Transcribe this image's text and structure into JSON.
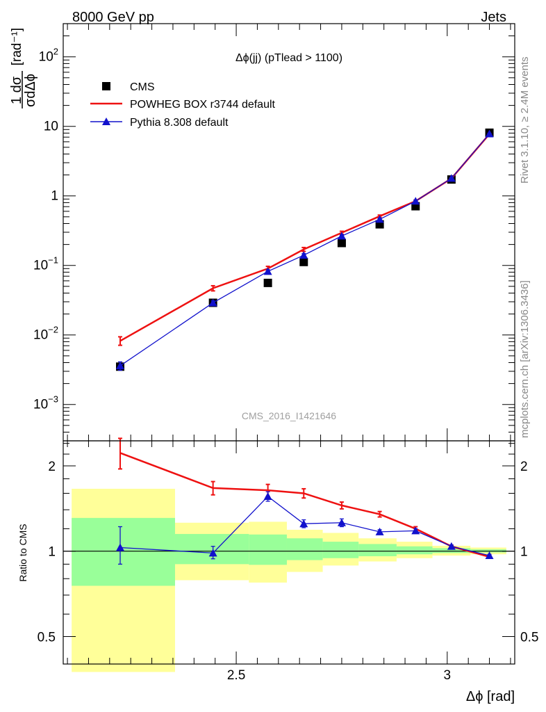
{
  "header": {
    "left": "8000 GeV pp",
    "right": "Jets"
  },
  "side_labels": {
    "top": "Rivet 3.1.10, ≥ 2.4M events",
    "bottom": "mcplots.cern.ch [arXiv:1306.3436]"
  },
  "analysis_tag": "CMS_2016_I1421646",
  "chart_data": [
    {
      "panel": "main",
      "type": "scatter",
      "title": "Δϕ(jj) (pTlead >  1100)",
      "ylabel_num": "1 dσ",
      "ylabel_den": "σdΔϕ",
      "ylabel_unit": "[rad⁻¹]",
      "xlim": [
        2.09,
        3.16
      ],
      "ylim": [
        0.0003,
        300
      ],
      "yscale": "log",
      "yticks": [
        {
          "value": 0.001,
          "base": "10",
          "exp": "−3"
        },
        {
          "value": 0.01,
          "base": "10",
          "exp": "−2"
        },
        {
          "value": 0.1,
          "base": "10",
          "exp": "−1"
        },
        {
          "value": 1,
          "base": "1",
          "exp": ""
        },
        {
          "value": 10,
          "base": "10",
          "exp": ""
        },
        {
          "value": 100,
          "base": "10",
          "exp": "2"
        }
      ],
      "legend": {
        "placement": "top-left"
      },
      "x": [
        2.225,
        2.445,
        2.575,
        2.66,
        2.75,
        2.84,
        2.925,
        3.01,
        3.1
      ],
      "series": [
        {
          "name": "CMS",
          "color": "#000000",
          "marker": "square",
          "values": [
            0.0035,
            0.029,
            0.056,
            0.112,
            0.21,
            0.39,
            0.71,
            1.72,
            8.1
          ],
          "err_lo": [
            0.0032,
            0.027,
            0.053,
            0.106,
            0.2,
            0.375,
            0.685,
            1.67,
            7.9
          ],
          "err_hi": [
            0.0038,
            0.031,
            0.059,
            0.118,
            0.22,
            0.405,
            0.735,
            1.77,
            8.3
          ]
        },
        {
          "name": "POWHEG BOX r3744 default",
          "color": "#ee1111",
          "marker": "none",
          "values": [
            0.0082,
            0.047,
            0.09,
            0.17,
            0.295,
            0.51,
            0.84,
            1.78,
            7.75
          ],
          "err_lo": [
            0.0071,
            0.043,
            0.083,
            0.159,
            0.28,
            0.49,
            0.81,
            1.74,
            7.6
          ],
          "err_hi": [
            0.0094,
            0.051,
            0.097,
            0.181,
            0.31,
            0.53,
            0.87,
            1.82,
            7.9
          ]
        },
        {
          "name": "Pythia 8.308 default",
          "color": "#1111cc",
          "marker": "triangle",
          "values": [
            0.0036,
            0.029,
            0.082,
            0.14,
            0.265,
            0.46,
            0.84,
            1.79,
            7.8
          ],
          "err_lo": [
            0.0031,
            0.027,
            0.077,
            0.132,
            0.255,
            0.445,
            0.815,
            1.75,
            7.65
          ],
          "err_hi": [
            0.0041,
            0.031,
            0.087,
            0.148,
            0.275,
            0.475,
            0.865,
            1.83,
            7.95
          ]
        }
      ]
    },
    {
      "panel": "ratio",
      "type": "line",
      "ylabel": "Ratio to CMS",
      "xlabel": "Δϕ [rad]",
      "xlim": [
        2.09,
        3.16
      ],
      "ylim": [
        0.4,
        2.45
      ],
      "yscale": "log",
      "xticks": [
        {
          "value": 2.5,
          "label": "2.5"
        },
        {
          "value": 3.0,
          "label": "3"
        }
      ],
      "yticks": [
        {
          "value": 0.5,
          "label": "0.5"
        },
        {
          "value": 1,
          "label": "1"
        },
        {
          "value": 2,
          "label": "2"
        }
      ],
      "bands": {
        "inner_color": "#99ff99",
        "outer_color": "#ffff99",
        "bins": [
          {
            "x0": 2.11,
            "x1": 2.355,
            "inner": [
              0.755,
              1.31
            ],
            "outer": [
              0.375,
              1.66
            ]
          },
          {
            "x0": 2.355,
            "x1": 2.53,
            "inner": [
              0.9,
              1.15
            ],
            "outer": [
              0.79,
              1.26
            ]
          },
          {
            "x0": 2.53,
            "x1": 2.62,
            "inner": [
              0.895,
              1.145
            ],
            "outer": [
              0.775,
              1.27
            ]
          },
          {
            "x0": 2.62,
            "x1": 2.705,
            "inner": [
              0.93,
              1.11
            ],
            "outer": [
              0.845,
              1.19
            ]
          },
          {
            "x0": 2.705,
            "x1": 2.79,
            "inner": [
              0.945,
              1.08
            ],
            "outer": [
              0.89,
              1.16
            ]
          },
          {
            "x0": 2.79,
            "x1": 2.88,
            "inner": [
              0.96,
              1.06
            ],
            "outer": [
              0.92,
              1.11
            ]
          },
          {
            "x0": 2.88,
            "x1": 2.965,
            "inner": [
              0.975,
              1.04
            ],
            "outer": [
              0.945,
              1.08
            ]
          },
          {
            "x0": 2.965,
            "x1": 3.055,
            "inner": [
              0.985,
              1.025
            ],
            "outer": [
              0.965,
              1.045
            ]
          },
          {
            "x0": 3.055,
            "x1": 3.14,
            "inner": [
              0.99,
              1.015
            ],
            "outer": [
              0.975,
              1.03
            ]
          }
        ]
      },
      "x": [
        2.225,
        2.445,
        2.575,
        2.66,
        2.75,
        2.84,
        2.925,
        3.01,
        3.1
      ],
      "series": [
        {
          "name": "POWHEG BOX r3744 default",
          "color": "#ee1111",
          "marker": "none",
          "values": [
            2.22,
            1.67,
            1.64,
            1.6,
            1.45,
            1.35,
            1.2,
            1.04,
            0.955
          ],
          "err_lo": [
            1.95,
            1.58,
            1.56,
            1.54,
            1.41,
            1.32,
            1.18,
            1.03,
            0.945
          ],
          "err_hi": [
            2.5,
            1.76,
            1.72,
            1.66,
            1.49,
            1.38,
            1.22,
            1.05,
            0.965
          ]
        },
        {
          "name": "Pythia 8.308 default",
          "color": "#1111cc",
          "marker": "triangle",
          "values": [
            1.03,
            0.985,
            1.56,
            1.25,
            1.26,
            1.17,
            1.18,
            1.04,
            0.965
          ],
          "err_lo": [
            0.9,
            0.94,
            1.5,
            1.21,
            1.22,
            1.15,
            1.16,
            1.03,
            0.955
          ],
          "err_hi": [
            1.22,
            1.04,
            1.62,
            1.29,
            1.3,
            1.19,
            1.2,
            1.05,
            0.975
          ]
        }
      ]
    }
  ]
}
